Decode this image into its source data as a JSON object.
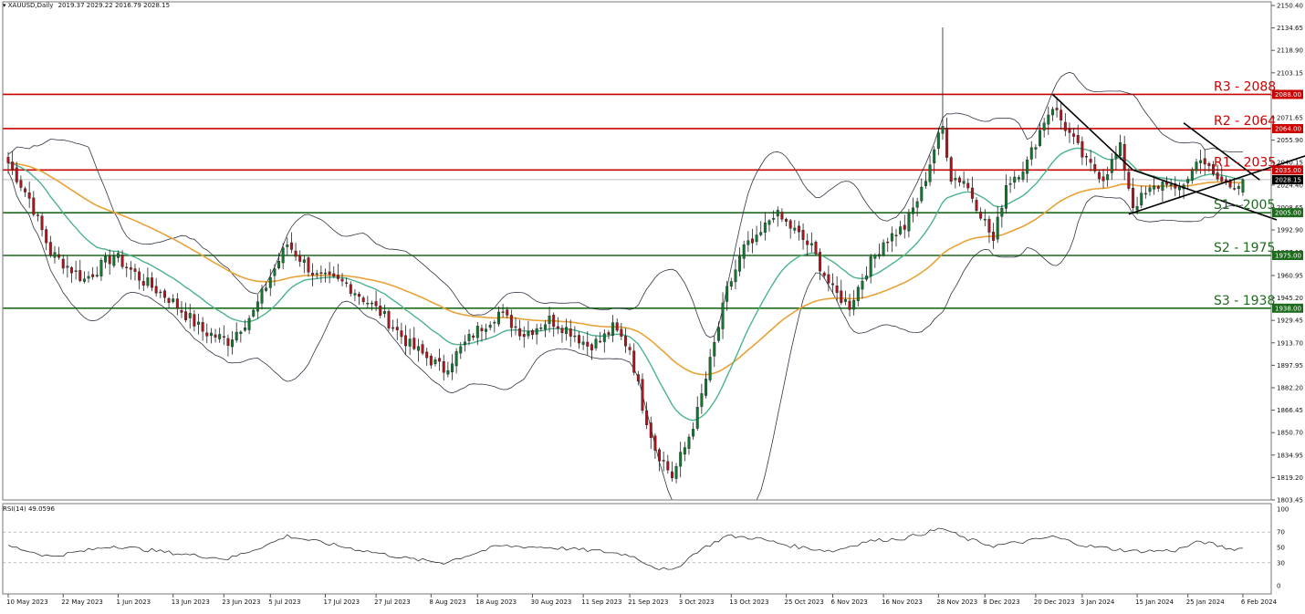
{
  "header": {
    "symbol": "XAUUSD,Daily",
    "ohlc": "2019.37 2029.22 2016.79 2028.15"
  },
  "rsi_header": {
    "label": "RSI(14) 49.0596"
  },
  "colors": {
    "resistance": "#cc0000",
    "support": "#1e6b1e",
    "bull": "#0e7a2e",
    "bear": "#b0141a",
    "ema_green": "#4cb38c",
    "ema_orange": "#e8a237",
    "bollinger": "#333344",
    "trendline": "#000000"
  },
  "chart_data": [
    {
      "type": "candlestick",
      "title": "XAUUSD,Daily",
      "ohlc_last": {
        "open": 2019.37,
        "high": 2029.22,
        "low": 2016.79,
        "close": 2028.15
      },
      "y_ticks": [
        "2150.40",
        "2134.65",
        "2118.90",
        "2103.15",
        "2087.40",
        "2071.65",
        "2055.90",
        "2040.15",
        "2024.40",
        "2008.65",
        "1992.90",
        "1977.15",
        "1960.95",
        "1945.20",
        "1929.45",
        "1913.70",
        "1897.95",
        "1882.20",
        "1866.45",
        "1850.70",
        "1834.95",
        "1819.20",
        "1803.45"
      ],
      "ylim": [
        1803.45,
        2150.4
      ],
      "x_ticks": [
        "10 May 2023",
        "22 May 2023",
        "1 Jun 2023",
        "13 Jun 2023",
        "23 Jun 2023",
        "5 Jul 2023",
        "17 Jul 2023",
        "27 Jul 2023",
        "8 Aug 2023",
        "18 Aug 2023",
        "30 Aug 2023",
        "11 Sep 2023",
        "21 Sep 2023",
        "3 Oct 2023",
        "13 Oct 2023",
        "25 Oct 2023",
        "6 Nov 2023",
        "16 Nov 2023",
        "28 Nov 2023",
        "8 Dec 2023",
        "20 Dec 2023",
        "3 Jan 2024",
        "15 Jan 2024",
        "25 Jan 2024",
        "6 Feb 2024"
      ],
      "last_price_tag": "2028.15",
      "levels": [
        {
          "name": "R3 - 2088",
          "tag": "2088.00",
          "value": 2088,
          "kind": "resistance"
        },
        {
          "name": "R2 - 2064",
          "tag": "2064.00",
          "value": 2064,
          "kind": "resistance"
        },
        {
          "name": "R1 - 2035",
          "tag": "2035.00",
          "value": 2035,
          "kind": "resistance"
        },
        {
          "name": "S1 - 2005",
          "tag": "2005.00",
          "value": 2005,
          "kind": "support"
        },
        {
          "name": "S2 - 1975",
          "tag": "1975.00",
          "value": 1975,
          "kind": "support"
        },
        {
          "name": "S3 - 1938",
          "tag": "1938.00",
          "value": 1938,
          "kind": "support"
        }
      ],
      "anchors": [
        {
          "i": 0,
          "v": 2040
        },
        {
          "i": 5,
          "v": 2015
        },
        {
          "i": 10,
          "v": 1977
        },
        {
          "i": 18,
          "v": 1958
        },
        {
          "i": 25,
          "v": 1975
        },
        {
          "i": 32,
          "v": 1957
        },
        {
          "i": 38,
          "v": 1945
        },
        {
          "i": 46,
          "v": 1922
        },
        {
          "i": 52,
          "v": 1915
        },
        {
          "i": 58,
          "v": 1935
        },
        {
          "i": 62,
          "v": 1960
        },
        {
          "i": 66,
          "v": 1983
        },
        {
          "i": 73,
          "v": 1960
        },
        {
          "i": 80,
          "v": 1955
        },
        {
          "i": 88,
          "v": 1935
        },
        {
          "i": 95,
          "v": 1912
        },
        {
          "i": 103,
          "v": 1895
        },
        {
          "i": 110,
          "v": 1920
        },
        {
          "i": 116,
          "v": 1935
        },
        {
          "i": 122,
          "v": 1920
        },
        {
          "i": 128,
          "v": 1930
        },
        {
          "i": 133,
          "v": 1922
        },
        {
          "i": 137,
          "v": 1912
        },
        {
          "i": 140,
          "v": 1915
        },
        {
          "i": 143,
          "v": 1924
        },
        {
          "i": 147,
          "v": 1910
        },
        {
          "i": 150,
          "v": 1870
        },
        {
          "i": 153,
          "v": 1840
        },
        {
          "i": 157,
          "v": 1820
        },
        {
          "i": 160,
          "v": 1840
        },
        {
          "i": 163,
          "v": 1865
        },
        {
          "i": 166,
          "v": 1900
        },
        {
          "i": 170,
          "v": 1950
        },
        {
          "i": 174,
          "v": 1980
        },
        {
          "i": 177,
          "v": 1985
        },
        {
          "i": 181,
          "v": 2005
        },
        {
          "i": 185,
          "v": 1995
        },
        {
          "i": 190,
          "v": 1980
        },
        {
          "i": 195,
          "v": 1950
        },
        {
          "i": 199,
          "v": 1940
        },
        {
          "i": 203,
          "v": 1965
        },
        {
          "i": 207,
          "v": 1985
        },
        {
          "i": 212,
          "v": 1995
        },
        {
          "i": 216,
          "v": 2020
        },
        {
          "i": 219,
          "v": 2050
        },
        {
          "i": 221,
          "v": 2065
        },
        {
          "i": 223,
          "v": 2030
        },
        {
          "i": 226,
          "v": 2028
        },
        {
          "i": 230,
          "v": 2005
        },
        {
          "i": 233,
          "v": 1985
        },
        {
          "i": 236,
          "v": 2025
        },
        {
          "i": 241,
          "v": 2040
        },
        {
          "i": 245,
          "v": 2070
        },
        {
          "i": 247,
          "v": 2080
        },
        {
          "i": 251,
          "v": 2060
        },
        {
          "i": 255,
          "v": 2040
        },
        {
          "i": 259,
          "v": 2030
        },
        {
          "i": 263,
          "v": 2050
        },
        {
          "i": 266,
          "v": 2010
        },
        {
          "i": 270,
          "v": 2020
        },
        {
          "i": 274,
          "v": 2028
        },
        {
          "i": 276,
          "v": 2018
        },
        {
          "i": 279,
          "v": 2030
        },
        {
          "i": 282,
          "v": 2045
        },
        {
          "i": 285,
          "v": 2030
        },
        {
          "i": 289,
          "v": 2024
        },
        {
          "i": 292,
          "v": 2028
        }
      ]
    },
    {
      "type": "line",
      "title": "RSI(14) 49.0596",
      "ylim": [
        0,
        100
      ],
      "y_ticks": [
        "100",
        "70",
        "50",
        "30",
        "0"
      ],
      "levels": [
        70,
        30
      ],
      "last_value": 49.0596,
      "anchors": [
        {
          "i": 0,
          "v": 52
        },
        {
          "i": 10,
          "v": 38
        },
        {
          "i": 25,
          "v": 52
        },
        {
          "i": 40,
          "v": 42
        },
        {
          "i": 52,
          "v": 35
        },
        {
          "i": 62,
          "v": 55
        },
        {
          "i": 66,
          "v": 65
        },
        {
          "i": 80,
          "v": 50
        },
        {
          "i": 95,
          "v": 35
        },
        {
          "i": 103,
          "v": 30
        },
        {
          "i": 116,
          "v": 52
        },
        {
          "i": 128,
          "v": 50
        },
        {
          "i": 140,
          "v": 45
        },
        {
          "i": 147,
          "v": 40
        },
        {
          "i": 153,
          "v": 24
        },
        {
          "i": 157,
          "v": 19
        },
        {
          "i": 163,
          "v": 45
        },
        {
          "i": 170,
          "v": 65
        },
        {
          "i": 177,
          "v": 62
        },
        {
          "i": 185,
          "v": 52
        },
        {
          "i": 195,
          "v": 45
        },
        {
          "i": 203,
          "v": 58
        },
        {
          "i": 212,
          "v": 62
        },
        {
          "i": 219,
          "v": 72
        },
        {
          "i": 221,
          "v": 75
        },
        {
          "i": 226,
          "v": 62
        },
        {
          "i": 233,
          "v": 52
        },
        {
          "i": 241,
          "v": 58
        },
        {
          "i": 247,
          "v": 64
        },
        {
          "i": 255,
          "v": 52
        },
        {
          "i": 266,
          "v": 45
        },
        {
          "i": 276,
          "v": 46
        },
        {
          "i": 282,
          "v": 58
        },
        {
          "i": 289,
          "v": 48
        },
        {
          "i": 292,
          "v": 49
        }
      ]
    }
  ]
}
